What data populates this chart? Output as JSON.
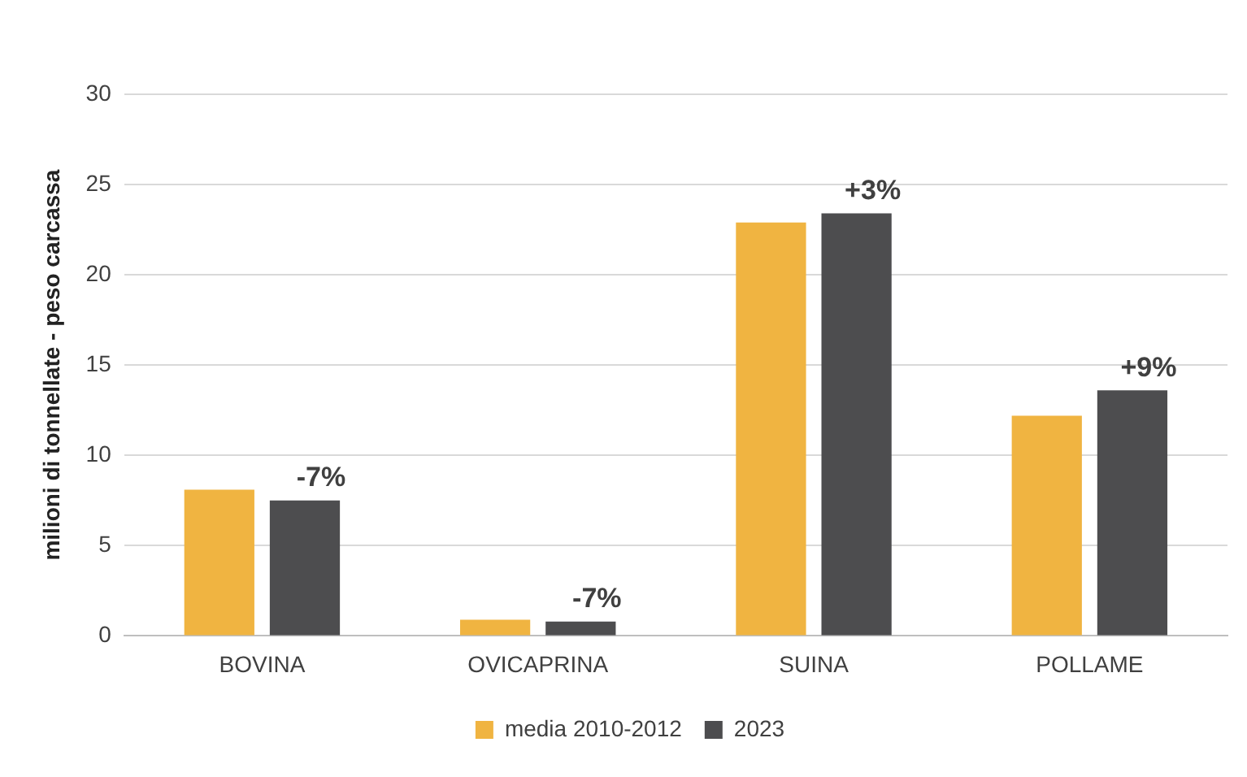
{
  "chart_data": {
    "type": "bar",
    "ylabel": "milioni di tonnellate - peso carcassa",
    "categories": [
      "BOVINA",
      "OVICAPRINA",
      "SUINA",
      "POLLAME"
    ],
    "series": [
      {
        "name": "media 2010-2012",
        "color": "#f0b441",
        "values": [
          8.1,
          0.9,
          22.9,
          12.2
        ]
      },
      {
        "name": "2023",
        "color": "#4d4d4f",
        "values": [
          7.5,
          0.8,
          23.4,
          13.6
        ]
      }
    ],
    "ylim": [
      0,
      30
    ],
    "yticks": [
      0,
      5,
      10,
      15,
      20,
      25,
      30
    ],
    "grid": "y",
    "legend": "bottom",
    "annotations": [
      {
        "text": "-7%",
        "x": "BOVINA",
        "y": 7.5
      },
      {
        "text": "-7%",
        "x": "OVICAPRINA",
        "y": 0.8
      },
      {
        "text": "+3%",
        "x": "SUINA",
        "y": 23.4
      },
      {
        "text": "+9%",
        "x": "POLLAME",
        "y": 13.6
      }
    ]
  }
}
